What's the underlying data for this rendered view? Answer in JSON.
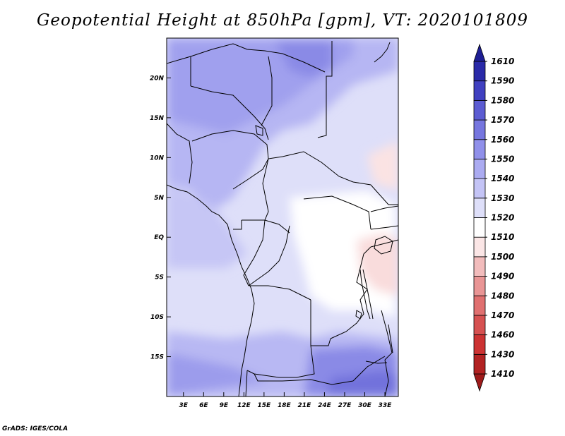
{
  "title": "Geopotential Height at 850hPa [gpm], VT: 2020101809",
  "credit": "GrADS: IGES/COLA",
  "chart_data": {
    "type": "heatmap",
    "title": "Geopotential Height at 850hPa [gpm], VT: 2020101809",
    "units": "gpm",
    "valid_time": "2020101809",
    "x_ticks": [
      "3E",
      "6E",
      "9E",
      "12E",
      "15E",
      "18E",
      "21E",
      "24E",
      "27E",
      "30E",
      "33E"
    ],
    "x_tick_values": [
      3,
      6,
      9,
      12,
      15,
      18,
      21,
      24,
      27,
      30,
      33
    ],
    "y_ticks": [
      "20N",
      "15N",
      "10N",
      "5N",
      "EQ",
      "5S",
      "10S",
      "15S"
    ],
    "y_tick_values": [
      20,
      15,
      10,
      5,
      0,
      -5,
      -10,
      -15
    ],
    "lon_range": [
      0.5,
      35
    ],
    "lat_range": [
      -20,
      25
    ],
    "colorbar": {
      "levels": [
        1410,
        1430,
        1460,
        1470,
        1480,
        1490,
        1500,
        1510,
        1520,
        1530,
        1540,
        1550,
        1560,
        1570,
        1580,
        1590,
        1610
      ],
      "colors": [
        "#9e1a1a",
        "#b22222",
        "#cc3333",
        "#d65151",
        "#e07070",
        "#e99595",
        "#f2bcbc",
        "#fbe6e6",
        "#ffffff",
        "#dedff9",
        "#c4c4f6",
        "#ababf1",
        "#9090ea",
        "#7676df",
        "#5c5cd2",
        "#4040c0",
        "#2a2aa8",
        "#1e1e94"
      ]
    },
    "grid": false,
    "legend_position": "right"
  }
}
